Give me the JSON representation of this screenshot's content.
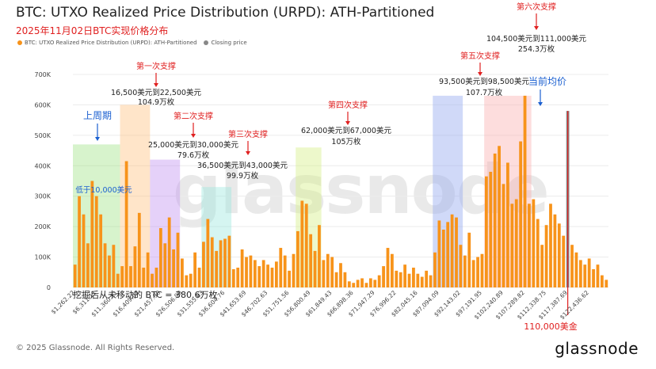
{
  "header": {
    "title": "BTC: UTXO Realized Price Distribution (URPD): ATH-Partitioned",
    "subtitle": "2025年11月02日BTC实现价格分布"
  },
  "legend": [
    {
      "label": "BTC: UTXO Realized Price Distribution (URPD): ATH-Partitioned",
      "color": "#f7931a"
    },
    {
      "label": "Closing price",
      "color": "#888888"
    }
  ],
  "footer": {
    "copyright": "© 2025 Glassnode. All Rights Reserved.",
    "brand": "glassnode",
    "watermark": "glassnode"
  },
  "chart_data": {
    "type": "bar",
    "title": "BTC: UTXO Realized Price Distribution (URPD): ATH-Partitioned",
    "ylim": [
      0,
      700000
    ],
    "y_ticks": [
      0,
      100000,
      200000,
      300000,
      400000,
      500000,
      600000,
      700000
    ],
    "y_tick_labels": [
      "0",
      "100K",
      "200K",
      "300K",
      "400K",
      "500K",
      "600K",
      "700K"
    ],
    "x_tick_labels": [
      "$1,262.22",
      "$6,311.11",
      "$11,360.11",
      "$16,409.02",
      "$21,457.90",
      "$26,506.90",
      "$31,555.83",
      "$36,604.76",
      "$41,653.69",
      "$46,702.63",
      "$51,751.56",
      "$56,800.49",
      "$61,849.43",
      "$66,898.36",
      "$71,947.29",
      "$76,996.22",
      "$82,045.16",
      "$87,094.09",
      "$92,143.02",
      "$97,191.95",
      "$102,240.89",
      "$107,289.82",
      "$112,338.75",
      "$117,387.69",
      "$122,436.62"
    ],
    "bar_color": "#f7931a",
    "closing_color": "#888888",
    "closing_price_index": 115,
    "values": [
      75000,
      300000,
      240000,
      145000,
      350000,
      300000,
      240000,
      145000,
      105000,
      140000,
      45000,
      70000,
      415000,
      70000,
      135000,
      245000,
      65000,
      115000,
      45000,
      65000,
      195000,
      145000,
      230000,
      125000,
      180000,
      95000,
      40000,
      45000,
      115000,
      65000,
      150000,
      225000,
      165000,
      120000,
      155000,
      160000,
      170000,
      60000,
      65000,
      125000,
      100000,
      105000,
      90000,
      70000,
      90000,
      75000,
      65000,
      85000,
      130000,
      105000,
      55000,
      110000,
      185000,
      285000,
      275000,
      175000,
      120000,
      205000,
      90000,
      110000,
      100000,
      50000,
      80000,
      50000,
      20000,
      15000,
      25000,
      30000,
      15000,
      30000,
      25000,
      40000,
      70000,
      130000,
      110000,
      55000,
      50000,
      75000,
      45000,
      65000,
      45000,
      35000,
      55000,
      40000,
      115000,
      220000,
      190000,
      215000,
      240000,
      230000,
      140000,
      105000,
      180000,
      90000,
      100000,
      110000,
      365000,
      380000,
      440000,
      465000,
      340000,
      410000,
      275000,
      290000,
      480000,
      630000,
      275000,
      290000,
      225000,
      140000,
      205000,
      275000,
      240000,
      210000,
      170000,
      580000,
      140000,
      115000,
      90000,
      75000,
      95000,
      60000,
      75000,
      40000,
      25000
    ],
    "annotations": [
      {
        "label": "上周期",
        "sub": "低于10,000美元"
      },
      {
        "label": "第一次支撑",
        "range": "16,500美元到22,500美元",
        "amount": "104.9万枚"
      },
      {
        "label": "第二次支撑",
        "range": "25,000美元到30,000美元",
        "amount": "79.6万枚"
      },
      {
        "label": "第三次支撑",
        "range": "36,500美元到43,000美元",
        "amount": "99.9万枚"
      },
      {
        "label": "第四次支撑",
        "range": "62,000美元到67,000美元",
        "amount": "105万枚"
      },
      {
        "label": "第五次支撑",
        "range": "93,500美元到98,500美元",
        "amount": "107.7万枚"
      },
      {
        "label": "第六次支撑",
        "range": "104,500美元到111,000美元",
        "amount": "254.3万枚"
      }
    ],
    "current_avg_label": "当前均价",
    "current_price_label": "110,000美金",
    "bottom_note": "挖掘后从未移动的 BTC = 380.6万枚"
  }
}
